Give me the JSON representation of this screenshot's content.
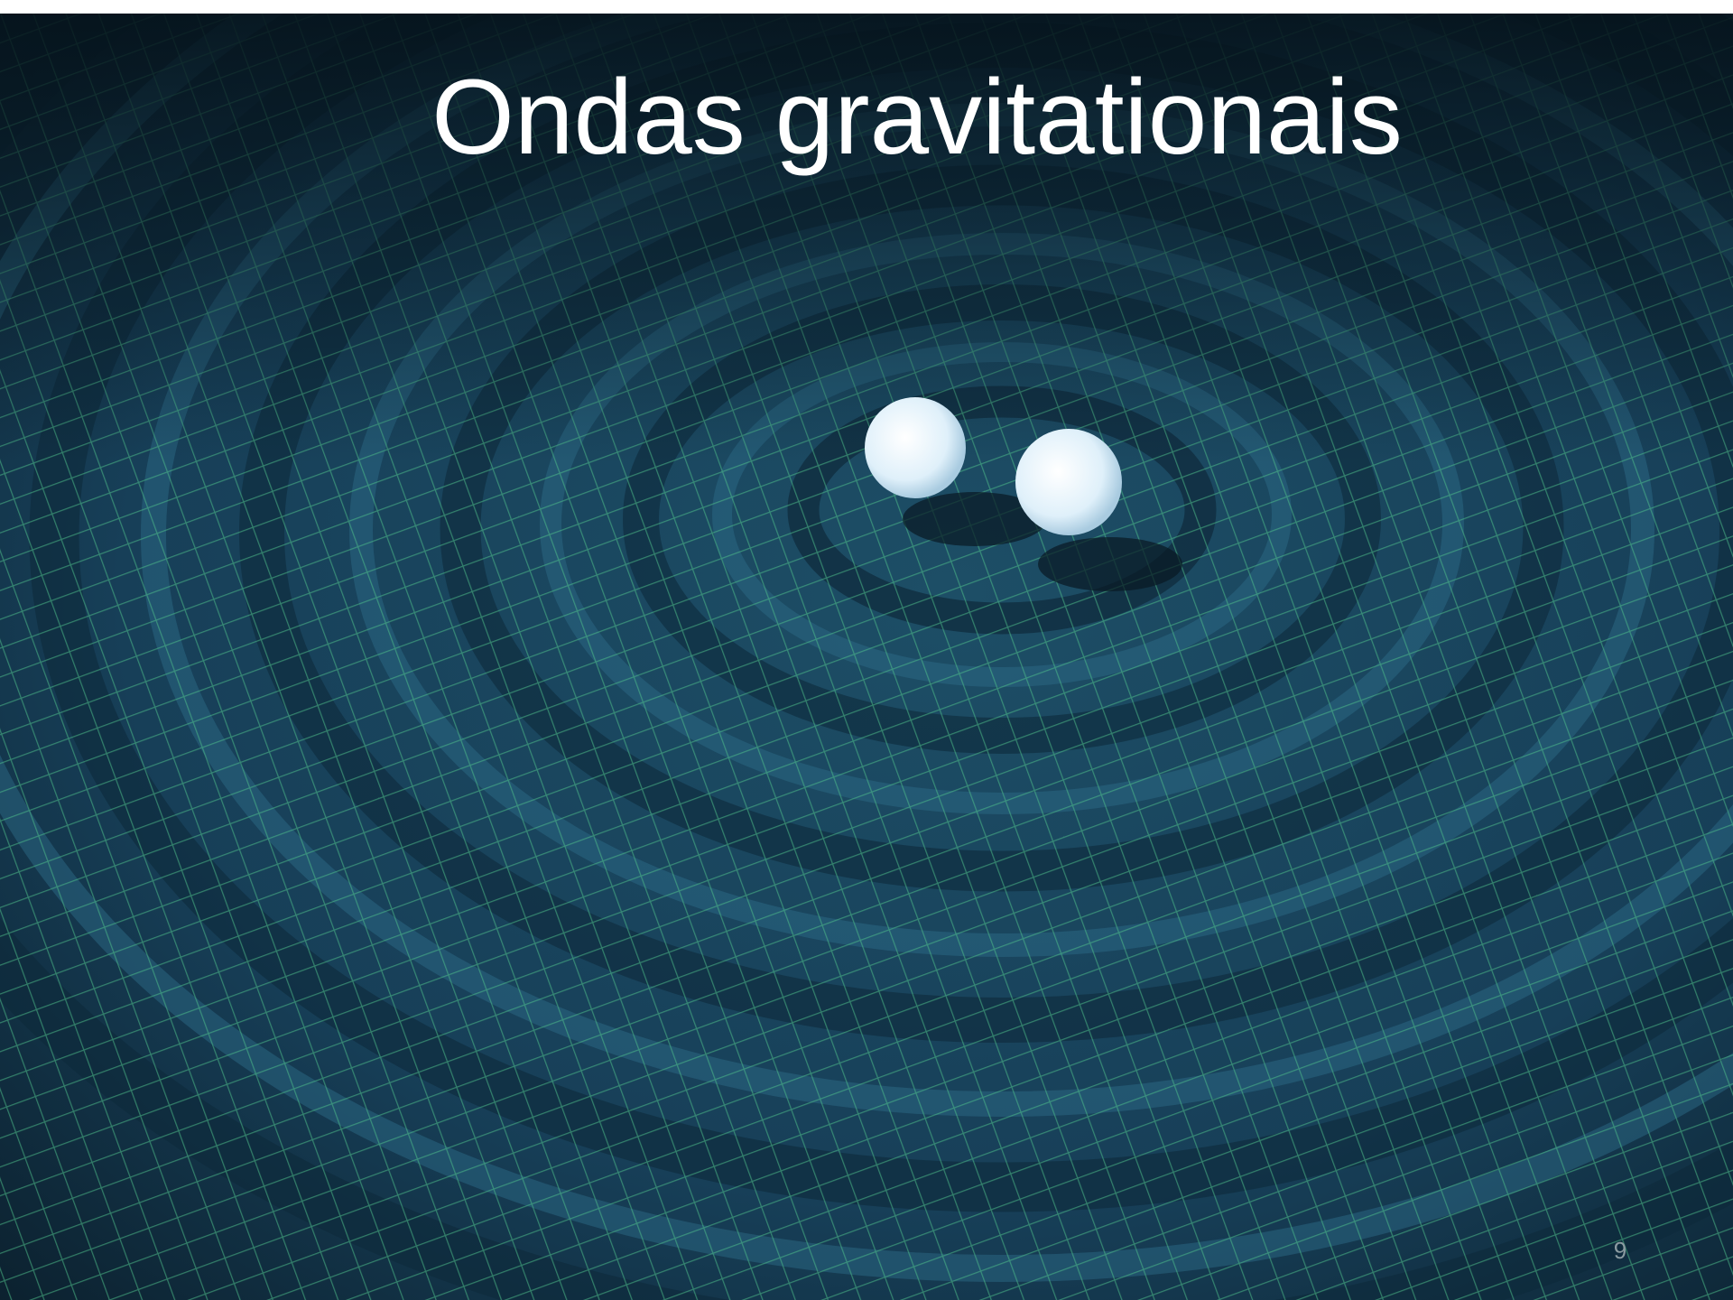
{
  "slide": {
    "title": "Ondas gravitationais",
    "page_number": "9"
  }
}
